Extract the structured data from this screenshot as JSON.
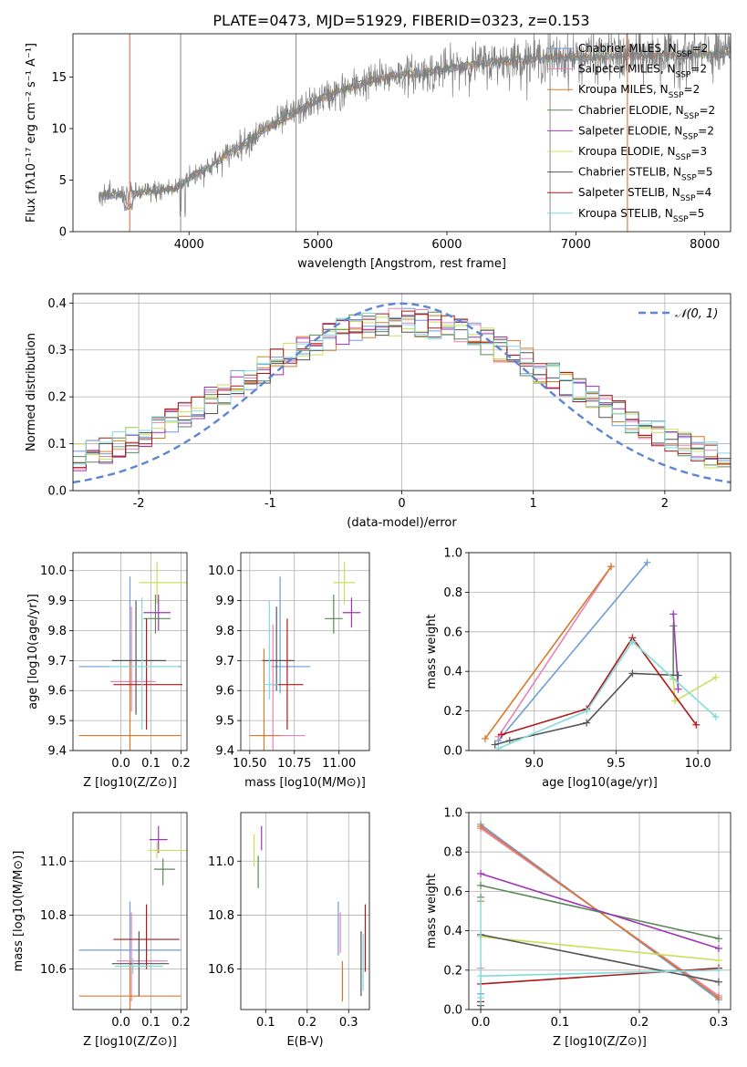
{
  "title": "PLATE=0473, MJD=51929, FIBERID=0323, z=0.153",
  "series_colors": [
    "#6f9bd8",
    "#e882b6",
    "#d97a2b",
    "#5a8a5a",
    "#a034b4",
    "#c8e05a",
    "#555555",
    "#b01818",
    "#7fdcdc"
  ],
  "chart_data": [
    {
      "type": "line",
      "name": "spectrum",
      "xlabel": "wavelength [Angstrom, rest frame]",
      "ylabel": "Flux [fλ10⁻¹⁷ erg cm⁻² s⁻¹ A⁻¹]",
      "xlim": [
        3100,
        8200
      ],
      "ylim": [
        0,
        19.2
      ],
      "xticks": [
        4000,
        5000,
        6000,
        7000,
        8000
      ],
      "yticks": [
        0,
        5,
        10,
        15
      ],
      "data_continuum": {
        "x": [
          3300,
          3500,
          3700,
          3900,
          4000,
          4200,
          4400,
          4600,
          4800,
          5000,
          5200,
          5400,
          5600,
          5800,
          6000,
          6200,
          6400,
          6600,
          6800,
          7000,
          7200,
          7400,
          7600,
          7800,
          8000
        ],
        "y": [
          3.5,
          3.6,
          3.9,
          4.2,
          5.2,
          6.6,
          8.4,
          10.0,
          11.4,
          12.8,
          13.8,
          14.6,
          15.2,
          15.4,
          15.8,
          16.2,
          16.5,
          16.7,
          16.8,
          16.9,
          17.0,
          17.0,
          17.1,
          17.1,
          17.2
        ]
      },
      "legend": [
        {
          "label": "Chabrier MILES, N",
          "sub": "SSP",
          "n": "=2"
        },
        {
          "label": "Salpeter MILES, N",
          "sub": "SSP",
          "n": "=2"
        },
        {
          "label": "Kroupa MILES, N",
          "sub": "SSP",
          "n": "=2"
        },
        {
          "label": "Chabrier ELODIE, N",
          "sub": "SSP",
          "n": "=2"
        },
        {
          "label": "Salpeter ELODIE, N",
          "sub": "SSP",
          "n": "=2"
        },
        {
          "label": "Kroupa ELODIE, N",
          "sub": "SSP",
          "n": "=3"
        },
        {
          "label": "Chabrier STELIB, N",
          "sub": "SSP",
          "n": "=5"
        },
        {
          "label": "Salpeter STELIB, N",
          "sub": "SSP",
          "n": "=4"
        },
        {
          "label": "Kroupa STELIB, N",
          "sub": "SSP",
          "n": "=5"
        }
      ],
      "legend_placement": "upper-right"
    },
    {
      "type": "histogram",
      "name": "residuals",
      "xlabel": "(data-model)/error",
      "ylabel": "Normed distribution",
      "xlim": [
        -2.5,
        2.5
      ],
      "ylim": [
        0,
        0.42
      ],
      "xticks": [
        -2,
        -1,
        0,
        1,
        2
      ],
      "yticks": [
        0.0,
        0.1,
        0.2,
        0.3,
        0.4
      ],
      "gaussian_label": "𝒩(0, 1)",
      "n_bins": 50,
      "grid": true
    },
    {
      "type": "errorbar",
      "name": "age-vs-Z",
      "xlabel": "Z [log10(Z/Z⊙)]",
      "ylabel": "age  [log10(age/yr)]",
      "xlim": [
        -0.16,
        0.22
      ],
      "ylim": [
        9.4,
        10.06
      ],
      "xticks": [
        0.0,
        0.1,
        0.2
      ],
      "yticks": [
        9.4,
        9.5,
        9.6,
        9.7,
        9.8,
        9.9,
        10.0
      ],
      "points": [
        {
          "x": 0.03,
          "y": 9.68,
          "xerr": [
            0.17,
            0.17
          ],
          "yerr": [
            0.09,
            0.3
          ]
        },
        {
          "x": 0.035,
          "y": 9.63,
          "xerr": [
            0.07,
            0.08
          ],
          "yerr": [
            0.1,
            0.25
          ]
        },
        {
          "x": 0.03,
          "y": 9.45,
          "xerr": [
            0.17,
            0.17
          ],
          "yerr": [
            0.05,
            0.25
          ]
        },
        {
          "x": 0.115,
          "y": 9.84,
          "xerr": [
            0.04,
            0.05
          ],
          "yerr": [
            0.05,
            0.08
          ]
        },
        {
          "x": 0.125,
          "y": 9.86,
          "xerr": [
            0.05,
            0.04
          ],
          "yerr": [
            0.06,
            0.06
          ]
        },
        {
          "x": 0.12,
          "y": 9.96,
          "xerr": [
            0.06,
            0.1
          ],
          "yerr": [
            0.07,
            0.07
          ]
        },
        {
          "x": 0.05,
          "y": 9.7,
          "xerr": [
            0.08,
            0.1
          ],
          "yerr": [
            0.18,
            0.2
          ]
        },
        {
          "x": 0.085,
          "y": 9.62,
          "xerr": [
            0.11,
            0.12
          ],
          "yerr": [
            0.15,
            0.22
          ]
        },
        {
          "x": 0.07,
          "y": 9.68,
          "xerr": [
            0.11,
            0.12
          ],
          "yerr": [
            0.21,
            0.23
          ]
        }
      ]
    },
    {
      "type": "errorbar",
      "name": "age-vs-mass",
      "xlabel": "mass [log10(M/M⊙)]",
      "ylabel": "",
      "xlim": [
        10.45,
        11.17
      ],
      "ylim": [
        9.4,
        10.06
      ],
      "xticks": [
        10.5,
        10.75,
        11.0
      ],
      "yticks": [
        9.4,
        9.5,
        9.6,
        9.7,
        9.8,
        9.9,
        10.0
      ],
      "xticklabels": [
        "10.50",
        "10.75",
        "11.00"
      ],
      "points": [
        {
          "x": 10.67,
          "y": 9.68,
          "xerr": [
            0.05,
            0.17
          ],
          "yerr": [
            0.09,
            0.3
          ]
        },
        {
          "x": 10.63,
          "y": 9.45,
          "xerr": [
            0.05,
            0.18
          ],
          "yerr": [
            0.05,
            0.37
          ]
        },
        {
          "x": 10.58,
          "y": 9.45,
          "xerr": [
            0.08,
            0.09
          ],
          "yerr": [
            0.05,
            0.29
          ]
        },
        {
          "x": 10.97,
          "y": 9.84,
          "xerr": [
            0.05,
            0.05
          ],
          "yerr": [
            0.05,
            0.08
          ]
        },
        {
          "x": 11.07,
          "y": 9.86,
          "xerr": [
            0.05,
            0.05
          ],
          "yerr": [
            0.05,
            0.05
          ]
        },
        {
          "x": 11.03,
          "y": 9.96,
          "xerr": [
            0.06,
            0.06
          ],
          "yerr": [
            0.07,
            0.07
          ]
        },
        {
          "x": 10.65,
          "y": 9.7,
          "xerr": [
            0.08,
            0.1
          ],
          "yerr": [
            0.1,
            0.18
          ]
        },
        {
          "x": 10.71,
          "y": 9.62,
          "xerr": [
            0.08,
            0.09
          ],
          "yerr": [
            0.15,
            0.22
          ]
        },
        {
          "x": 10.61,
          "y": 9.62,
          "xerr": [
            0.03,
            0.05
          ],
          "yerr": [
            0.05,
            0.28
          ]
        }
      ]
    },
    {
      "type": "line",
      "name": "mass-weight-vs-age",
      "xlabel": "age  [log10(age/yr)]",
      "ylabel": "mass weight",
      "xlim": [
        8.6,
        10.2
      ],
      "ylim": [
        0,
        1
      ],
      "xticks": [
        9.0,
        9.5,
        10.0
      ],
      "yticks": [
        0.0,
        0.2,
        0.4,
        0.6,
        0.8,
        1.0
      ],
      "series": [
        {
          "x": [
            8.78,
            9.69
          ],
          "y": [
            0.05,
            0.95
          ]
        },
        {
          "x": [
            8.78,
            9.47
          ],
          "y": [
            0.07,
            0.93
          ]
        },
        {
          "x": [
            8.7,
            9.47
          ],
          "y": [
            0.06,
            0.93
          ]
        },
        {
          "x": [
            9.85,
            9.85
          ],
          "y": [
            0.36,
            0.63
          ]
        },
        {
          "x": [
            9.85,
            9.88
          ],
          "y": [
            0.69,
            0.31
          ]
        },
        {
          "x": [
            9.85,
            9.86,
            10.11
          ],
          "y": [
            0.36,
            0.25,
            0.37
          ]
        },
        {
          "x": [
            8.76,
            8.85,
            9.32,
            9.6,
            9.88
          ],
          "y": [
            0.03,
            0.05,
            0.14,
            0.39,
            0.38
          ]
        },
        {
          "x": [
            8.8,
            9.32,
            9.6,
            9.99
          ],
          "y": [
            0.08,
            0.21,
            0.57,
            0.13
          ]
        },
        {
          "x": [
            8.78,
            9.32,
            9.6,
            10.11
          ],
          "y": [
            0.01,
            0.2,
            0.55,
            0.17
          ]
        }
      ]
    },
    {
      "type": "errorbar",
      "name": "mass-vs-Z",
      "xlabel": "Z [log10(Z/Z⊙)]",
      "ylabel": "mass [log10(M/M⊙)]",
      "xlim": [
        -0.16,
        0.22
      ],
      "ylim": [
        10.45,
        11.18
      ],
      "xticks": [
        0.0,
        0.1,
        0.2
      ],
      "yticks": [
        10.6,
        10.8,
        11.0
      ],
      "points": [
        {
          "x": 0.03,
          "y": 10.67,
          "xerr": [
            0.17,
            0.17
          ],
          "yerr": [
            0.06,
            0.18
          ]
        },
        {
          "x": 0.035,
          "y": 10.63,
          "xerr": [
            0.05,
            0.12
          ],
          "yerr": [
            0.15,
            0.18
          ]
        },
        {
          "x": 0.03,
          "y": 10.5,
          "xerr": [
            0.17,
            0.17
          ],
          "yerr": [
            0.05,
            0.13
          ]
        },
        {
          "x": 0.14,
          "y": 10.97,
          "xerr": [
            0.03,
            0.04
          ],
          "yerr": [
            0.06,
            0.04
          ]
        },
        {
          "x": 0.125,
          "y": 11.08,
          "xerr": [
            0.03,
            0.03
          ],
          "yerr": [
            0.05,
            0.05
          ]
        },
        {
          "x": 0.12,
          "y": 11.04,
          "xerr": [
            0.03,
            0.1
          ],
          "yerr": [
            0.03,
            0.03
          ]
        },
        {
          "x": 0.06,
          "y": 10.62,
          "xerr": [
            0.09,
            0.1
          ],
          "yerr": [
            0.12,
            0.12
          ]
        },
        {
          "x": 0.085,
          "y": 10.71,
          "xerr": [
            0.11,
            0.11
          ],
          "yerr": [
            0.11,
            0.13
          ]
        },
        {
          "x": 0.04,
          "y": 10.61,
          "xerr": [
            0.06,
            0.1
          ],
          "yerr": [
            0.03,
            0.03
          ]
        }
      ]
    },
    {
      "type": "errorbar",
      "name": "mass-vs-EBV",
      "xlabel": "E(B-V)",
      "ylabel": "",
      "xlim": [
        0.04,
        0.35
      ],
      "ylim": [
        10.45,
        11.18
      ],
      "xticks": [
        0.1,
        0.2,
        0.3
      ],
      "yticks": [
        10.6,
        10.8,
        11.0
      ],
      "points": [
        {
          "x": 0.275,
          "y": 10.73,
          "xerr": [
            0.0,
            0.0
          ],
          "yerr": [
            0.08,
            0.12
          ]
        },
        {
          "x": 0.28,
          "y": 10.72,
          "xerr": [
            0.0,
            0.0
          ],
          "yerr": [
            0.06,
            0.09
          ]
        },
        {
          "x": 0.285,
          "y": 10.55,
          "xerr": [
            0.0,
            0.0
          ],
          "yerr": [
            0.07,
            0.08
          ]
        },
        {
          "x": 0.082,
          "y": 10.96,
          "xerr": [
            0.0,
            0.0
          ],
          "yerr": [
            0.06,
            0.06
          ]
        },
        {
          "x": 0.09,
          "y": 11.08,
          "xerr": [
            0.0,
            0.0
          ],
          "yerr": [
            0.04,
            0.05
          ]
        },
        {
          "x": 0.072,
          "y": 11.04,
          "xerr": [
            0.0,
            0.0
          ],
          "yerr": [
            0.06,
            0.06
          ]
        },
        {
          "x": 0.33,
          "y": 10.62,
          "xerr": [
            0.0,
            0.0
          ],
          "yerr": [
            0.12,
            0.12
          ]
        },
        {
          "x": 0.34,
          "y": 10.71,
          "xerr": [
            0.0,
            0.0
          ],
          "yerr": [
            0.12,
            0.13
          ]
        },
        {
          "x": 0.335,
          "y": 10.6,
          "xerr": [
            0.0,
            0.0
          ],
          "yerr": [
            0.08,
            0.13
          ]
        }
      ]
    },
    {
      "type": "line",
      "name": "mass-weight-vs-Z",
      "xlabel": "Z [log10(Z/Z⊙)]",
      "ylabel": "mass weight",
      "xlim": [
        -0.015,
        0.315
      ],
      "ylim": [
        0,
        1
      ],
      "xticks": [
        0.0,
        0.1,
        0.2,
        0.3
      ],
      "yticks": [
        0.0,
        0.2,
        0.4,
        0.6,
        0.8,
        1.0
      ],
      "series": [
        {
          "x": [
            0.0,
            0.3
          ],
          "y": [
            0.94,
            0.05
          ]
        },
        {
          "x": [
            0.0,
            0.3
          ],
          "y": [
            0.92,
            0.07
          ]
        },
        {
          "x": [
            0.0,
            0.3
          ],
          "y": [
            0.93,
            0.06
          ]
        },
        {
          "x": [
            0.0,
            0.3
          ],
          "y": [
            0.63,
            0.36
          ]
        },
        {
          "x": [
            0.0,
            0.3
          ],
          "y": [
            0.69,
            0.31
          ]
        },
        {
          "x": [
            0.0,
            0.3
          ],
          "y": [
            0.37,
            0.25
          ]
        },
        {
          "x": [
            0.0,
            0.3
          ],
          "y": [
            0.38,
            0.14
          ]
        },
        {
          "x": [
            0.0,
            0.3
          ],
          "y": [
            0.13,
            0.21
          ]
        },
        {
          "x": [
            0.0,
            0.3
          ],
          "y": [
            0.17,
            0.2
          ]
        }
      ],
      "extra_markers_at_zero": [
        0.02,
        0.04,
        0.06,
        0.08,
        0.21,
        0.55,
        0.57
      ]
    }
  ]
}
